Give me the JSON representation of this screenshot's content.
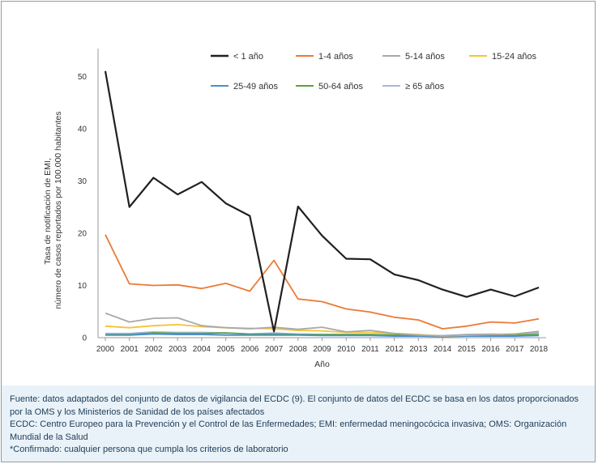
{
  "chart_data": {
    "type": "line",
    "xlabel": "Año",
    "ylabel_lines": [
      "Tasa de notificación de EMI,",
      "número de casos reportados por 100.000 habitantes"
    ],
    "x": [
      2000,
      2001,
      2002,
      2003,
      2004,
      2005,
      2006,
      2007,
      2008,
      2009,
      2010,
      2011,
      2012,
      2013,
      2014,
      2015,
      2016,
      2017,
      2018
    ],
    "x_tick_labels": [
      "2000",
      "2001",
      "2002",
      "2003",
      "2004",
      "2005",
      "2006",
      "2007",
      "2008",
      "2009",
      "2010",
      "2011",
      "2012",
      "2013",
      "2014",
      "2015",
      "2016",
      "2017",
      "2018"
    ],
    "y_ticks": [
      0,
      10,
      20,
      30,
      40,
      50
    ],
    "y_tick_labels": [
      "0",
      "10",
      "20",
      "30",
      "40",
      "50"
    ],
    "ylim": [
      0,
      55
    ],
    "grid": false,
    "legend_position": "top",
    "series": [
      {
        "name": "< 1 año",
        "color": "#231f20",
        "values": [
          51.0,
          25.0,
          30.6,
          27.4,
          29.8,
          25.7,
          23.3,
          1.2,
          25.1,
          19.5,
          15.1,
          15.0,
          12.1,
          11.0,
          9.2,
          7.8,
          9.2,
          7.9,
          9.6
        ]
      },
      {
        "name": "1-4 años",
        "color": "#ec7a35",
        "values": [
          19.7,
          10.3,
          10.0,
          10.1,
          9.4,
          10.4,
          8.9,
          14.8,
          7.4,
          6.9,
          5.5,
          4.9,
          3.9,
          3.4,
          1.7,
          2.2,
          3.0,
          2.8,
          3.6
        ]
      },
      {
        "name": "5-14 años",
        "color": "#a8a8a8",
        "values": [
          4.7,
          3.0,
          3.7,
          3.8,
          2.3,
          1.9,
          1.7,
          2.0,
          1.6,
          2.0,
          1.1,
          1.4,
          0.8,
          0.5,
          0.3,
          0.6,
          0.6,
          0.7,
          1.2
        ]
      },
      {
        "name": "15-24 años",
        "color": "#f6c236",
        "values": [
          2.2,
          1.9,
          2.3,
          2.5,
          2.1,
          1.9,
          1.8,
          1.7,
          1.4,
          1.3,
          1.0,
          1.0,
          0.8,
          0.6,
          0.3,
          0.5,
          0.6,
          0.7,
          1.2
        ]
      },
      {
        "name": "25-49 años",
        "color": "#4a8fd0",
        "values": [
          0.5,
          0.5,
          0.7,
          0.6,
          0.6,
          0.5,
          0.5,
          0.5,
          0.5,
          0.4,
          0.4,
          0.4,
          0.3,
          0.3,
          0.2,
          0.3,
          0.3,
          0.3,
          0.4
        ]
      },
      {
        "name": "50-64 años",
        "color": "#5ba33b",
        "values": [
          0.6,
          0.6,
          0.9,
          0.8,
          0.8,
          0.9,
          0.7,
          0.7,
          0.6,
          0.6,
          0.6,
          0.6,
          0.5,
          0.4,
          0.3,
          0.4,
          0.4,
          0.5,
          0.6
        ]
      },
      {
        "name": "≥ 65 años",
        "color": "#a3b8e0",
        "values": [
          0.8,
          0.8,
          1.1,
          1.0,
          1.0,
          0.9,
          0.7,
          0.9,
          0.7,
          0.6,
          0.6,
          0.6,
          0.5,
          0.5,
          0.4,
          0.6,
          0.7,
          0.6,
          0.9
        ]
      }
    ]
  },
  "caption": {
    "line1": "Fuente: datos adaptados del conjunto de datos de vigilancia del ECDC (9). El conjunto de datos del ECDC se basa en los datos proporcionados por la OMS y los Ministerios de Sanidad de los países afectados",
    "line2": "ECDC: Centro Europeo para la Prevención y el Control de las Enfermedades; EMI: enfermedad meningocócica invasiva; OMS: Organización Mundial de la Salud",
    "line3": "*Confirmado: cualquier persona que cumpla los criterios de laboratorio"
  }
}
